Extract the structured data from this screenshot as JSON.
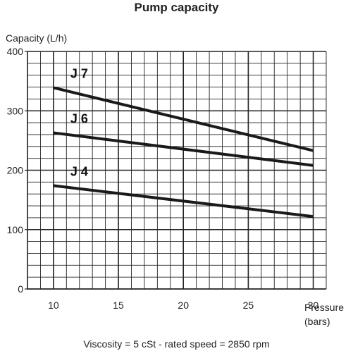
{
  "chart_data": {
    "type": "line",
    "title": "Pump  capacity",
    "ylabel": "Capacity (L/h)",
    "xlabel": "Pressure\n(bars)",
    "xlim": [
      8,
      31
    ],
    "ylim": [
      0,
      400
    ],
    "xticks": [
      10,
      15,
      20,
      25,
      30
    ],
    "yticks": [
      0,
      100,
      200,
      300,
      400
    ],
    "grid": true,
    "series": [
      {
        "name": "J 7",
        "x": [
          10,
          30
        ],
        "y": [
          339,
          233
        ]
      },
      {
        "name": "J 6",
        "x": [
          10,
          30
        ],
        "y": [
          263,
          208
        ]
      },
      {
        "name": "J 4",
        "x": [
          10,
          30
        ],
        "y": [
          174,
          122
        ]
      }
    ],
    "annotation": "Viscosity = 5 cSt  -  rated speed = 2850 rpm"
  }
}
